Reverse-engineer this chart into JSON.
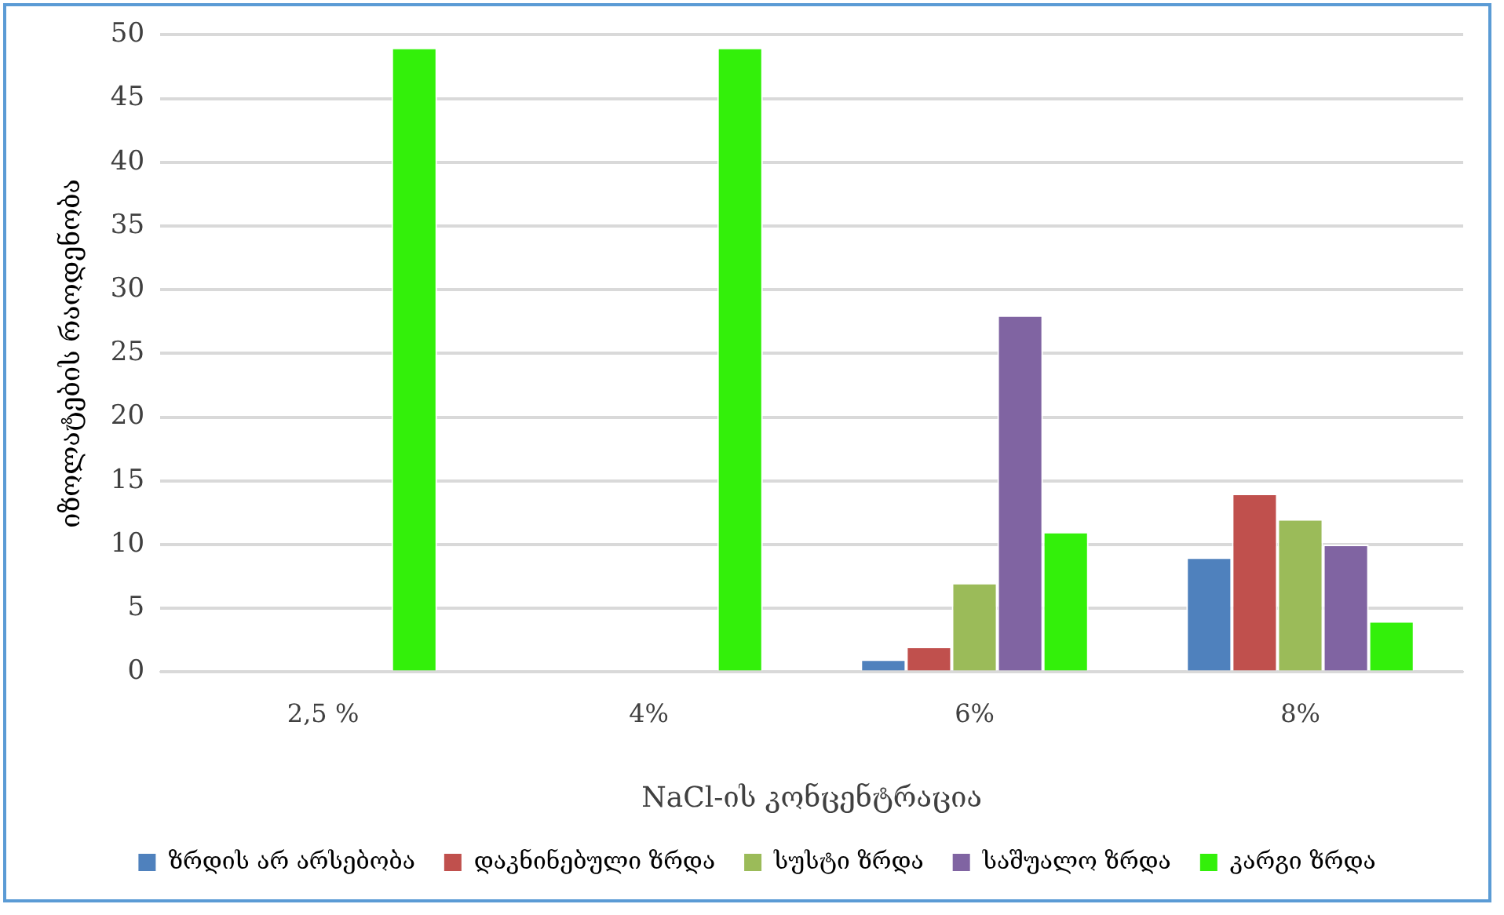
{
  "chart_data": {
    "type": "bar",
    "xlabel": "NaCl-ის კონცენტრაცია",
    "ylabel": "იზოლატების რაოდენობა",
    "categories": [
      "2,5 %",
      "4%",
      "6%",
      "8%"
    ],
    "series": [
      {
        "name": "ზრდის არ არსებობა",
        "color": "#4f81bd",
        "values": [
          0,
          0,
          1,
          9
        ]
      },
      {
        "name": "დაკნინებული ზრდა",
        "color": "#c0504d",
        "values": [
          0,
          0,
          2,
          14
        ]
      },
      {
        "name": "სუსტი ზრდა",
        "color": "#9bbb59",
        "values": [
          0,
          0,
          7,
          12
        ]
      },
      {
        "name": "საშუალო ზრდა",
        "color": "#8064a2",
        "values": [
          0,
          0,
          28,
          10
        ]
      },
      {
        "name": "კარგი ზრდა",
        "color": "#33f00a",
        "values": [
          49,
          49,
          11,
          4
        ]
      }
    ],
    "ylim": [
      0,
      50
    ],
    "yticks": [
      0,
      5,
      10,
      15,
      20,
      25,
      30,
      35,
      40,
      45,
      50
    ],
    "grid": "y",
    "legend": "bottom"
  }
}
